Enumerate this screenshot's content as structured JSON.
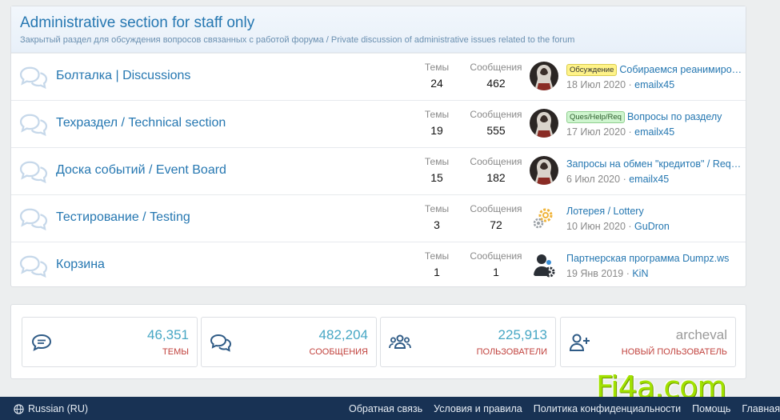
{
  "category": {
    "title": "Administrative section for staff only",
    "description": "Закрытый раздел для обсуждения вопросов связанных с работой форума / Private discussion of administrative issues related to the forum"
  },
  "stat_labels": {
    "threads": "Темы",
    "messages": "Сообщения"
  },
  "nodes": [
    {
      "title": "Болталка | Discussions",
      "threads": "24",
      "messages": "462",
      "last_prefix": "Обсуждение",
      "last_prefix_color": "yellow",
      "last_title": "Собираемся реанимировать",
      "last_date": "18 Июл 2020",
      "last_user": "emailx45",
      "avatar": "hooded-figure"
    },
    {
      "title": "Техраздел / Technical section",
      "threads": "19",
      "messages": "555",
      "last_prefix": "Ques/Help/Req",
      "last_prefix_color": "green",
      "last_title": "Вопросы по разделу",
      "last_date": "17 Июл 2020",
      "last_user": "emailx45",
      "avatar": "hooded-figure"
    },
    {
      "title": "Доска событий / Event Board",
      "threads": "15",
      "messages": "182",
      "last_prefix": "",
      "last_title": "Запросы на обмен \"кредитов\" / Requests",
      "last_date": "6 Июл 2020",
      "last_user": "emailx45",
      "avatar": "hooded-figure"
    },
    {
      "title": "Тестирование / Testing",
      "threads": "3",
      "messages": "72",
      "last_prefix": "",
      "last_title": "Лотерея / Lottery",
      "last_date": "10 Июн 2020",
      "last_user": "GuDron",
      "avatar": "gears"
    },
    {
      "title": "Корзина",
      "threads": "1",
      "messages": "1",
      "last_prefix": "",
      "last_title": "Партнерская программа Dumpz.ws",
      "last_date": "19 Янв 2019",
      "last_user": "KiN",
      "avatar": "user-gear"
    }
  ],
  "forum_stats": [
    {
      "icon": "comment-icon",
      "value": "46,351",
      "label": "ТЕМЫ"
    },
    {
      "icon": "comments-icon",
      "value": "482,204",
      "label": "СООБЩЕНИЯ"
    },
    {
      "icon": "users-icon",
      "value": "225,913",
      "label": "ПОЛЬЗОВАТЕЛИ"
    },
    {
      "icon": "user-plus-icon",
      "value": "archeval",
      "label": "НОВЫЙ ПОЛЬЗОВАТЕЛЬ"
    }
  ],
  "watermark": "Fi4a.com",
  "footer": {
    "language": "Russian (RU)",
    "links": [
      "Обратная связь",
      "Условия и правила",
      "Политика конфиденциальности",
      "Помощь",
      "Главная"
    ]
  },
  "colors": {
    "link": "#2577b1",
    "footer_bg": "#183254",
    "stat_value": "#47a7c4",
    "stat_label": "#c1423d",
    "watermark": "#a1e100"
  }
}
